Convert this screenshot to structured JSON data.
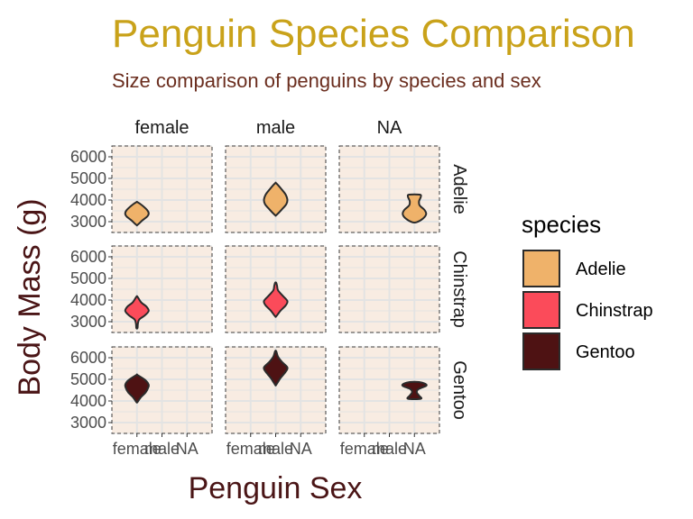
{
  "chart_data": {
    "type": "violin",
    "title": "Penguin Species Comparison",
    "subtitle": "Size comparison of penguins by species and sex",
    "xlabel": "Penguin Sex",
    "ylabel": "Body Mass (g)",
    "x_categories": [
      "female",
      "male",
      "NA"
    ],
    "y_ticks": [
      3000,
      4000,
      5000,
      6000
    ],
    "y_ticks_display": [
      "3000",
      "4000",
      "5000",
      "6000"
    ],
    "ylim": [
      2500,
      6500
    ],
    "col_facets": [
      "female",
      "male",
      "NA"
    ],
    "row_facets": [
      "Adelie",
      "Chinstrap",
      "Gentoo"
    ],
    "legend": {
      "title": "species",
      "placement": "right",
      "entries": [
        {
          "name": "Adelie",
          "color": "#efb26a"
        },
        {
          "name": "Chinstrap",
          "color": "#fb4b5a"
        },
        {
          "name": "Gentoo",
          "color": "#4e1213"
        }
      ]
    },
    "colors": {
      "title": "#c9a21a",
      "subtitle": "#6b2e1f",
      "axis_title": "#4a1516",
      "panel_bg": "#f8ece2",
      "grid": "#e3e3e3",
      "outline": "#2b2b2b"
    },
    "violins": [
      {
        "species": "Adelie",
        "sex": "female",
        "min": 2850,
        "max": 3900,
        "profile": [
          [
            2850,
            0.05
          ],
          [
            3050,
            0.45
          ],
          [
            3250,
            0.9
          ],
          [
            3400,
            1.0
          ],
          [
            3550,
            0.85
          ],
          [
            3750,
            0.45
          ],
          [
            3900,
            0.05
          ]
        ]
      },
      {
        "species": "Adelie",
        "sex": "male",
        "min": 3300,
        "max": 4775,
        "profile": [
          [
            3300,
            0.05
          ],
          [
            3550,
            0.5
          ],
          [
            3800,
            0.9
          ],
          [
            4000,
            1.0
          ],
          [
            4250,
            0.85
          ],
          [
            4500,
            0.5
          ],
          [
            4775,
            0.05
          ]
        ]
      },
      {
        "species": "Adelie",
        "sex": "NA",
        "min": 2975,
        "max": 4250,
        "profile": [
          [
            2975,
            0.2
          ],
          [
            3150,
            0.75
          ],
          [
            3350,
            1.0
          ],
          [
            3550,
            0.85
          ],
          [
            3750,
            0.45
          ],
          [
            3950,
            0.4
          ],
          [
            4150,
            0.55
          ],
          [
            4250,
            0.45
          ]
        ]
      },
      {
        "species": "Chinstrap",
        "sex": "female",
        "min": 2700,
        "max": 4150,
        "profile": [
          [
            2700,
            0.05
          ],
          [
            2900,
            0.08
          ],
          [
            3100,
            0.2
          ],
          [
            3300,
            0.7
          ],
          [
            3500,
            1.0
          ],
          [
            3700,
            0.8
          ],
          [
            3900,
            0.35
          ],
          [
            4150,
            0.05
          ]
        ]
      },
      {
        "species": "Chinstrap",
        "sex": "male",
        "min": 3250,
        "max": 4800,
        "profile": [
          [
            3250,
            0.05
          ],
          [
            3500,
            0.4
          ],
          [
            3750,
            0.85
          ],
          [
            3950,
            1.0
          ],
          [
            4200,
            0.6
          ],
          [
            4450,
            0.2
          ],
          [
            4650,
            0.12
          ],
          [
            4800,
            0.05
          ]
        ]
      },
      {
        "species": "Gentoo",
        "sex": "female",
        "min": 3950,
        "max": 5200,
        "profile": [
          [
            3950,
            0.05
          ],
          [
            4150,
            0.3
          ],
          [
            4400,
            0.75
          ],
          [
            4600,
            0.95
          ],
          [
            4750,
            1.0
          ],
          [
            4950,
            0.75
          ],
          [
            5200,
            0.05
          ]
        ]
      },
      {
        "species": "Gentoo",
        "sex": "male",
        "min": 4750,
        "max": 6300,
        "profile": [
          [
            4750,
            0.05
          ],
          [
            5050,
            0.4
          ],
          [
            5350,
            0.85
          ],
          [
            5550,
            1.0
          ],
          [
            5800,
            0.55
          ],
          [
            6050,
            0.2
          ],
          [
            6300,
            0.05
          ]
        ]
      },
      {
        "species": "Gentoo",
        "sex": "NA",
        "min": 4100,
        "max": 4875,
        "profile": [
          [
            4100,
            0.55
          ],
          [
            4250,
            0.4
          ],
          [
            4400,
            0.2
          ],
          [
            4550,
            0.35
          ],
          [
            4700,
            1.0
          ],
          [
            4800,
            0.9
          ],
          [
            4875,
            0.4
          ]
        ]
      }
    ]
  }
}
